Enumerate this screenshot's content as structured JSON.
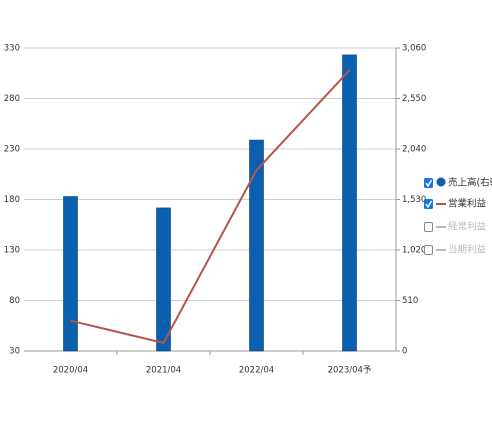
{
  "chart_data": {
    "type": "bar_line",
    "categories": [
      "2020/04",
      "2021/04",
      "2022/04",
      "2023/04予"
    ],
    "series": [
      {
        "name": "売上高(右軸)",
        "type": "bar",
        "axis": "y2",
        "color": "#0a5fae",
        "checked": true,
        "values": [
          1560,
          1445,
          2130,
          2990
        ]
      },
      {
        "name": "営業利益",
        "type": "line",
        "axis": "y",
        "color": "#b5554c",
        "checked": true,
        "values": [
          60,
          38,
          209,
          308
        ]
      },
      {
        "name": "経常利益",
        "type": "line",
        "axis": "y",
        "color": "#bbbbbb",
        "checked": false,
        "values": [
          null,
          null,
          null,
          null
        ]
      },
      {
        "name": "当期利益",
        "type": "line",
        "axis": "y",
        "color": "#bbbbbb",
        "checked": false,
        "values": [
          null,
          null,
          null,
          null
        ]
      }
    ],
    "ylim": [
      30,
      330
    ],
    "yticks": [
      30,
      80,
      130,
      180,
      230,
      280,
      330
    ],
    "y2lim": [
      0,
      3060
    ],
    "y2ticks": [
      0,
      510,
      {
        "value": 1020,
        "label": "1,020"
      },
      {
        "value": 1530,
        "label": "1,530"
      },
      {
        "value": 2040,
        "label": "2,040"
      },
      {
        "value": 2550,
        "label": "2,550"
      },
      {
        "value": 3060,
        "label": "3,060"
      }
    ],
    "grid": true
  }
}
